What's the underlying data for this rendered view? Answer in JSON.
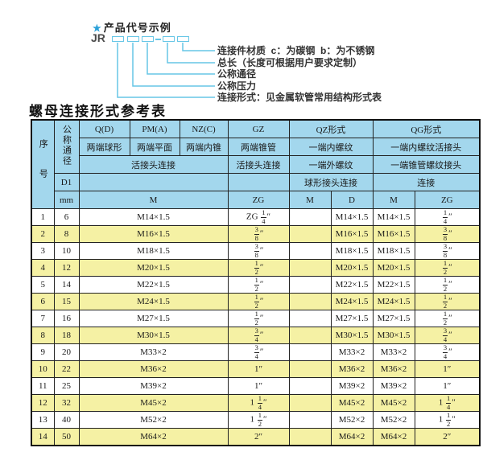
{
  "colors": {
    "accent_cyan": "#66c6e6",
    "star_blue": "#29a0d8",
    "header_bg": "#a3d7ed",
    "row_alt_yellow": "#f5f1a4",
    "border": "#222222"
  },
  "diagram": {
    "star": "★",
    "title": "产品代号示例",
    "prefix": "JR",
    "labels": [
      "连接件材质  c：为碳钢  b：为不锈钢",
      "总长（长度可根据用户要求定制）",
      "公称通径",
      "公称压力",
      "连接形式：见金属软管常用结构形式表"
    ]
  },
  "table_title": "螺母连接形式参考表",
  "table": {
    "header": {
      "seq": "序号",
      "dn": "公称通径",
      "d1": "D1",
      "mm": "mm",
      "col_q": "Q(D)",
      "col_pm": "PM(A)",
      "col_nz": "NZ(C)",
      "col_gz": "GZ",
      "col_qz": "QZ形式",
      "col_qg": "QG形式",
      "q_desc": "两端球形",
      "pm_desc": "两端平面",
      "nz_desc": "两端内锥",
      "gz_desc": "两端锥管",
      "qz_desc1": "一端内螺纹",
      "qg_desc1": "一端内螺纹活接头",
      "union_conn": "活接头连接",
      "gz_conn": "活接头连接",
      "qz_desc2": "一端外螺纹",
      "qg_desc2": "一端锥管螺纹接头",
      "qz_conn": "球形接头连接",
      "qg_conn": "连接",
      "m_wide": "M",
      "zg": "ZG",
      "qz_m": "M",
      "qz_d": "D",
      "qg_m": "M",
      "qg_zg": "ZG"
    },
    "rows": [
      {
        "seq": "1",
        "dn": "6",
        "m": "M14×1.5",
        "zg": "ZG 1/4″",
        "qz_m": "",
        "qz_d": "M14×1.5",
        "qg_m": "M14×1.5",
        "qg_zg": "1/4″"
      },
      {
        "seq": "2",
        "dn": "8",
        "m": "M16×1.5",
        "zg": "3/8″",
        "qz_m": "",
        "qz_d": "M16×1.5",
        "qg_m": "M16×1.5",
        "qg_zg": "3/8″"
      },
      {
        "seq": "3",
        "dn": "10",
        "m": "M18×1.5",
        "zg": "3/8″",
        "qz_m": "",
        "qz_d": "M18×1.5",
        "qg_m": "M18×1.5",
        "qg_zg": "3/8″"
      },
      {
        "seq": "4",
        "dn": "12",
        "m": "M20×1.5",
        "zg": "1/2″",
        "qz_m": "",
        "qz_d": "M20×1.5",
        "qg_m": "M20×1.5",
        "qg_zg": "1/2″"
      },
      {
        "seq": "5",
        "dn": "14",
        "m": "M22×1.5",
        "zg": "1/2″",
        "qz_m": "",
        "qz_d": "M22×1.5",
        "qg_m": "M22×1.5",
        "qg_zg": "1/2″"
      },
      {
        "seq": "6",
        "dn": "15",
        "m": "M24×1.5",
        "zg": "1/2″",
        "qz_m": "",
        "qz_d": "M24×1.5",
        "qg_m": "M24×1.5",
        "qg_zg": "1/2″"
      },
      {
        "seq": "7",
        "dn": "16",
        "m": "M27×1.5",
        "zg": "1/2″",
        "qz_m": "",
        "qz_d": "M27×1.5",
        "qg_m": "M27×1.5",
        "qg_zg": "1/2″"
      },
      {
        "seq": "8",
        "dn": "18",
        "m": "M30×1.5",
        "zg": "3/4″",
        "qz_m": "",
        "qz_d": "M30×1.5",
        "qg_m": "M30×1.5",
        "qg_zg": "3/4″"
      },
      {
        "seq": "9",
        "dn": "20",
        "m": "M33×2",
        "zg": "3/4″",
        "qz_m": "",
        "qz_d": "M33×2",
        "qg_m": "M33×2",
        "qg_zg": "3/4″"
      },
      {
        "seq": "10",
        "dn": "22",
        "m": "M36×2",
        "zg": "1″",
        "qz_m": "",
        "qz_d": "M36×2",
        "qg_m": "M36×2",
        "qg_zg": "1″"
      },
      {
        "seq": "11",
        "dn": "25",
        "m": "M39×2",
        "zg": "1″",
        "qz_m": "",
        "qz_d": "M39×2",
        "qg_m": "M39×2",
        "qg_zg": "1″"
      },
      {
        "seq": "12",
        "dn": "32",
        "m": "M45×2",
        "zg": "1 1/4″",
        "qz_m": "",
        "qz_d": "M45×2",
        "qg_m": "M45×2",
        "qg_zg": "1 1/4″"
      },
      {
        "seq": "13",
        "dn": "40",
        "m": "M52×2",
        "zg": "1 1/2″",
        "qz_m": "",
        "qz_d": "M52×2",
        "qg_m": "M52×2",
        "qg_zg": "1 1/2″"
      },
      {
        "seq": "14",
        "dn": "50",
        "m": "M64×2",
        "zg": "2″",
        "qz_m": "",
        "qz_d": "M64×2",
        "qg_m": "M64×2",
        "qg_zg": "2″"
      }
    ]
  }
}
